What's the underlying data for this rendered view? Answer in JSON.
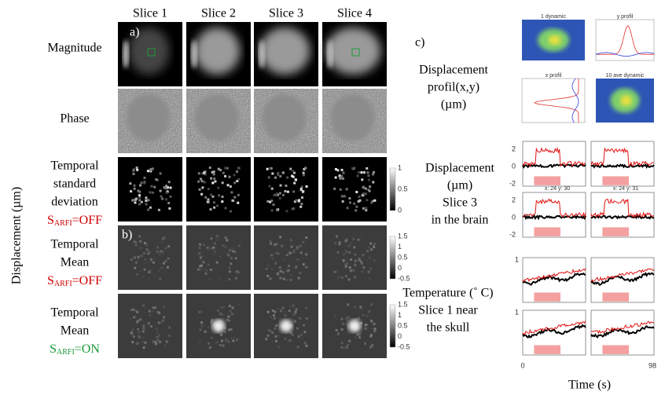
{
  "column_headers": [
    "Slice 1",
    "Slice 2",
    "Slice 3",
    "Slice 4"
  ],
  "panel_labels": [
    "a)",
    "b)",
    "c)"
  ],
  "y_axis_label": "Displacement (µm)",
  "rows": [
    {
      "lines": [
        "Magnitude"
      ]
    },
    {
      "lines": [
        "Phase"
      ]
    },
    {
      "lines": [
        "Temporal",
        "standard",
        "deviation"
      ],
      "condition": {
        "symbol": "S",
        "subscript": "ARFI",
        "state": "=OFF",
        "color": "#d00000"
      }
    },
    {
      "lines": [
        "Temporal",
        "Mean"
      ],
      "condition": {
        "symbol": "S",
        "subscript": "ARFI",
        "state": "=OFF",
        "color": "#d00000"
      }
    },
    {
      "lines": [
        "Temporal",
        "Mean"
      ],
      "condition": {
        "symbol": "S",
        "subscript": "ARFI",
        "state": "=ON",
        "color": "#1a9a3a"
      }
    }
  ],
  "colorbars": [
    {
      "ticks": [
        "1",
        "0.5",
        "0"
      ]
    },
    {
      "ticks": [
        "1.5",
        "1",
        "0.5",
        "0",
        "-0.5"
      ]
    },
    {
      "ticks": [
        "1.5",
        "1",
        "0.5",
        "0",
        "-0.5"
      ]
    }
  ],
  "profile_label": [
    "Displacement",
    "profil(x,y)",
    "(µm)"
  ],
  "profile_titles": [
    "1 dynamic",
    "y profil",
    "x profil",
    "10 ave dynamic"
  ],
  "displacement_label": [
    "Displacement",
    "(µm)",
    "Slice 3",
    "in the brain"
  ],
  "displacement_ticks": [
    "2",
    "0",
    "-2"
  ],
  "plot_titles": [
    "x: 24 y: 30",
    "x: 24 y: 31"
  ],
  "temperature_label": [
    "Temperature (˚ C)",
    "Slice 1 near",
    "the skull"
  ],
  "temperature_tick": "1",
  "time_ticks": [
    "0",
    "98"
  ],
  "time_label": "Time (s)"
}
